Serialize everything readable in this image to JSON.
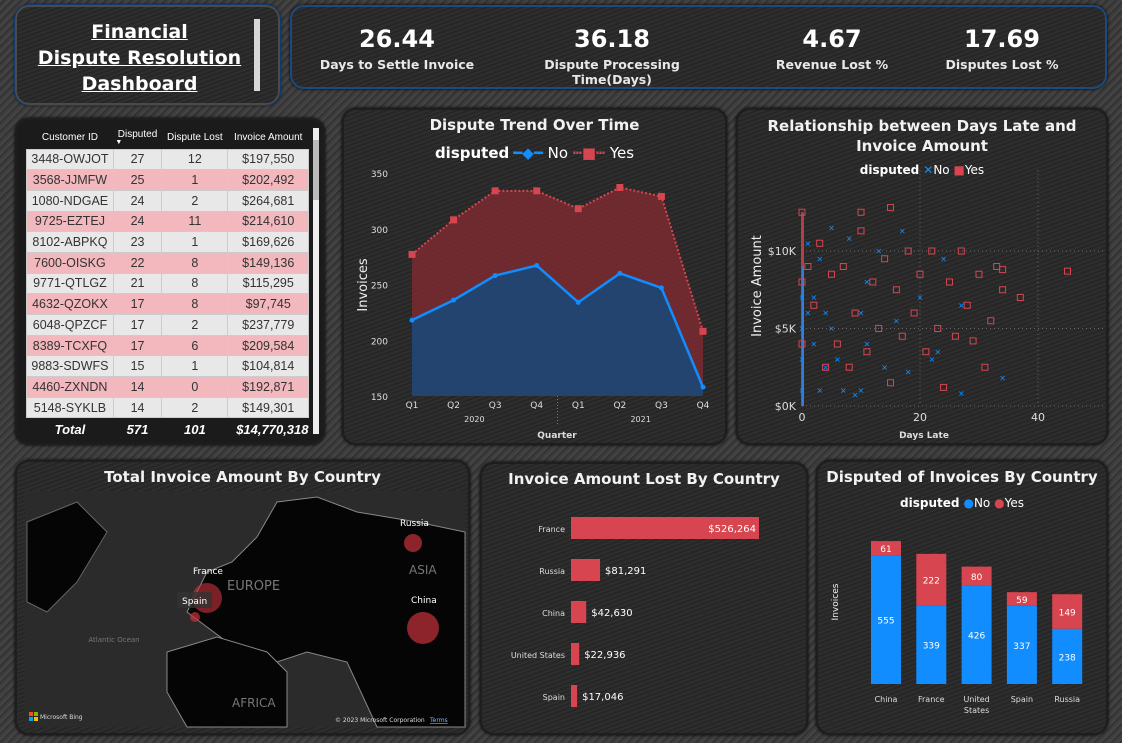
{
  "title": "Financial Dispute Resolution Dashboard",
  "title_lines": [
    "Financial",
    "Dispute Resolution",
    "Dashboard"
  ],
  "colors": {
    "no": "#118dff",
    "yes": "#d64550",
    "no_area": "#15497a",
    "yes_area": "#7a2a30"
  },
  "kpis": [
    {
      "value": "26.44",
      "label": "Days to Settle Invoice"
    },
    {
      "value": "36.18",
      "label": "Dispute Processing Time(Days)"
    },
    {
      "value": "4.67",
      "label": "Revenue Lost %"
    },
    {
      "value": "17.69",
      "label": "Disputes Lost %"
    }
  ],
  "table": {
    "columns": [
      "Customer ID",
      "Disputed",
      "Dispute Lost",
      "Invoice Amount"
    ],
    "sort_column": "Disputed",
    "rows": [
      [
        "3448-OWJOT",
        "27",
        "12",
        "$197,550"
      ],
      [
        "3568-JJMFW",
        "25",
        "1",
        "$202,492"
      ],
      [
        "1080-NDGAE",
        "24",
        "2",
        "$264,681"
      ],
      [
        "9725-EZTEJ",
        "24",
        "11",
        "$214,610"
      ],
      [
        "8102-ABPKQ",
        "23",
        "1",
        "$169,626"
      ],
      [
        "7600-OISKG",
        "22",
        "8",
        "$149,136"
      ],
      [
        "9771-QTLGZ",
        "21",
        "8",
        "$115,295"
      ],
      [
        "4632-QZOKX",
        "17",
        "8",
        "$97,745"
      ],
      [
        "6048-QPZCF",
        "17",
        "2",
        "$237,779"
      ],
      [
        "8389-TCXFQ",
        "17",
        "6",
        "$209,584"
      ],
      [
        "9883-SDWFS",
        "15",
        "1",
        "$104,814"
      ],
      [
        "4460-ZXNDN",
        "14",
        "0",
        "$192,871"
      ],
      [
        "5148-SYKLB",
        "14",
        "2",
        "$149,301"
      ]
    ],
    "total": [
      "Total",
      "571",
      "101",
      "$14,770,318"
    ]
  },
  "chart_data": [
    {
      "type": "area",
      "title": "Dispute Trend Over Time",
      "legend_title": "disputed",
      "xlabel": "Quarter",
      "ylabel": "Invoices",
      "categories": [
        "Q1",
        "Q2",
        "Q3",
        "Q4",
        "Q1",
        "Q2",
        "Q3",
        "Q4"
      ],
      "years": [
        "2020",
        "2021"
      ],
      "yticks": [
        "150",
        "200",
        "250",
        "300",
        "350"
      ],
      "ylim": [
        150,
        350
      ],
      "series": [
        {
          "name": "No",
          "values": [
            218,
            236,
            258,
            267,
            234,
            260,
            247,
            158
          ]
        },
        {
          "name": "Yes",
          "values": [
            277,
            308,
            334,
            334,
            318,
            337,
            329,
            208
          ]
        }
      ]
    },
    {
      "type": "scatter",
      "title": "Relationship between Days Late and Invoice Amount",
      "legend_title": "disputed",
      "xlabel": "Days Late",
      "ylabel": "Invoice Amount",
      "xticks": [
        "0",
        "20",
        "40"
      ],
      "yticks": [
        "$0K",
        "$5K",
        "$10K"
      ],
      "xlim": [
        0,
        50
      ],
      "ylim": [
        0,
        13000
      ],
      "series": [
        {
          "name": "No",
          "points": [
            [
              0,
              1000
            ],
            [
              0,
              3000
            ],
            [
              0,
              5000
            ],
            [
              0,
              7000
            ],
            [
              1,
              6000
            ],
            [
              1,
              10500
            ],
            [
              2,
              4000
            ],
            [
              2,
              7000
            ],
            [
              3,
              1000
            ],
            [
              3,
              9500
            ],
            [
              4,
              2500
            ],
            [
              4,
              6000
            ],
            [
              5,
              11500
            ],
            [
              5,
              5000
            ],
            [
              6,
              3000
            ],
            [
              7,
              1000
            ],
            [
              8,
              10800
            ],
            [
              9,
              700
            ],
            [
              10,
              1000
            ],
            [
              10,
              6000
            ],
            [
              11,
              8000
            ],
            [
              11,
              4000
            ],
            [
              13,
              10000
            ],
            [
              14,
              2500
            ],
            [
              16,
              5500
            ],
            [
              17,
              11300
            ],
            [
              18,
              2200
            ],
            [
              20,
              7000
            ],
            [
              22,
              3000
            ],
            [
              23,
              3500
            ],
            [
              24,
              9500
            ],
            [
              27,
              800
            ],
            [
              34,
              1800
            ],
            [
              27,
              6500
            ]
          ]
        },
        {
          "name": "Yes",
          "points": [
            [
              0,
              12500
            ],
            [
              0,
              8000
            ],
            [
              0,
              4000
            ],
            [
              1,
              9000
            ],
            [
              2,
              6500
            ],
            [
              3,
              10500
            ],
            [
              4,
              2500
            ],
            [
              5,
              8500
            ],
            [
              6,
              4000
            ],
            [
              7,
              9000
            ],
            [
              8,
              2500
            ],
            [
              9,
              6000
            ],
            [
              10,
              12500
            ],
            [
              10,
              11300
            ],
            [
              11,
              3500
            ],
            [
              12,
              8000
            ],
            [
              13,
              5000
            ],
            [
              14,
              9500
            ],
            [
              15,
              12800
            ],
            [
              15,
              1500
            ],
            [
              16,
              7500
            ],
            [
              17,
              4500
            ],
            [
              18,
              10000
            ],
            [
              19,
              6000
            ],
            [
              20,
              8500
            ],
            [
              21,
              3500
            ],
            [
              22,
              10000
            ],
            [
              23,
              5000
            ],
            [
              24,
              1200
            ],
            [
              25,
              8000
            ],
            [
              26,
              4500
            ],
            [
              27,
              10000
            ],
            [
              28,
              6500
            ],
            [
              29,
              4200
            ],
            [
              30,
              8500
            ],
            [
              31,
              2500
            ],
            [
              32,
              5500
            ],
            [
              33,
              9000
            ],
            [
              34,
              7500
            ],
            [
              37,
              7000
            ],
            [
              45,
              8700
            ],
            [
              34,
              8800
            ]
          ]
        }
      ]
    },
    {
      "type": "bar",
      "orientation": "horizontal",
      "title": "Invoice Amount Lost By Country",
      "categories": [
        "France",
        "Russia",
        "China",
        "United States",
        "Spain"
      ],
      "values": [
        526264,
        81291,
        42630,
        22936,
        17046
      ],
      "labels": [
        "$526,264",
        "$81,291",
        "$42,630",
        "$22,936",
        "$17,046"
      ]
    },
    {
      "type": "bar",
      "stacked": true,
      "title": "Disputed of Invoices By Country",
      "legend_title": "disputed",
      "ylabel": "Invoices",
      "categories": [
        "China",
        "France",
        "United States",
        "Spain",
        "Russia"
      ],
      "series": [
        {
          "name": "No",
          "values": [
            555,
            339,
            426,
            337,
            238
          ]
        },
        {
          "name": "Yes",
          "values": [
            61,
            222,
            80,
            59,
            149
          ]
        }
      ]
    }
  ],
  "map": {
    "title": "Total Invoice Amount By Country",
    "bubbles": [
      {
        "country": "France"
      },
      {
        "country": "Spain"
      },
      {
        "country": "Russia"
      },
      {
        "country": "China"
      }
    ],
    "region_labels": [
      "EUROPE",
      "ASIA",
      "AFRICA",
      "Atlantic Ocean"
    ],
    "attribution": "Microsoft Bing",
    "copyright": "© 2023 Microsoft Corporation",
    "terms": "Terms"
  }
}
